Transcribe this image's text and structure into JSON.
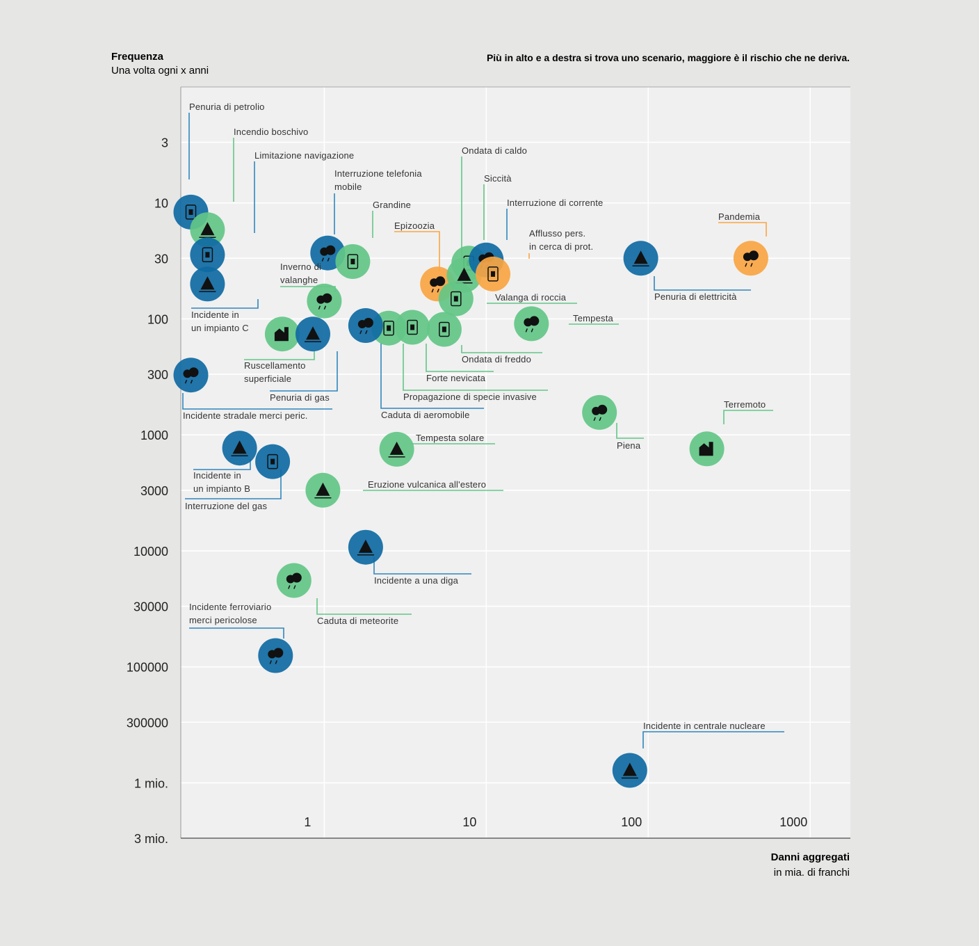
{
  "chart_data": {
    "type": "scatter",
    "title": "Più in alto e a destra si trova uno scenario, maggiore è il rischio che ne deriva.",
    "ylabel_title": "Frequenza",
    "ylabel_sub": "Una volta ogni x anni",
    "xlabel_title": "Danni aggregati",
    "xlabel_sub": "in mia. di franchi",
    "x_scale": "log",
    "y_scale": "log-inverted",
    "xlim": [
      0.13,
      1770
    ],
    "ylim": [
      1,
      3000000
    ],
    "x_ticks": [
      {
        "v": 1,
        "label": "1"
      },
      {
        "v": 10,
        "label": "10"
      },
      {
        "v": 100,
        "label": "100"
      },
      {
        "v": 1000,
        "label": "1000"
      }
    ],
    "y_ticks": [
      {
        "v": 3,
        "label": "3"
      },
      {
        "v": 10,
        "label": "10"
      },
      {
        "v": 30,
        "label": "30"
      },
      {
        "v": 100,
        "label": "100"
      },
      {
        "v": 300,
        "label": "300"
      },
      {
        "v": 1000,
        "label": "1000"
      },
      {
        "v": 3000,
        "label": "3000"
      },
      {
        "v": 10000,
        "label": "10000"
      },
      {
        "v": 30000,
        "label": "30000"
      },
      {
        "v": 100000,
        "label": "100000"
      },
      {
        "v": 300000,
        "label": "300000"
      },
      {
        "v": 1000000,
        "label": "1 mio."
      },
      {
        "v": 3000000,
        "label": "3 mio."
      }
    ],
    "colors": {
      "societal": "#0f6aa3",
      "natural": "#63c587",
      "technical": "#0f6aa3",
      "health": "#f9a543",
      "natural_line": "#63c587",
      "blue_line": "#2f86bd",
      "orange_line": "#f9a543"
    },
    "points": [
      {
        "name": "Penuria di petrolio",
        "x": 0.15,
        "y": 12,
        "cat": "blue",
        "icon": "fuel-icon"
      },
      {
        "name": "Incendio boschivo",
        "x": 0.19,
        "y": 17,
        "cat": "green",
        "icon": "forest-fire-icon"
      },
      {
        "name": "Limitazione navigazione",
        "x": 0.19,
        "y": 28,
        "cat": "blue",
        "icon": "ship-icon"
      },
      {
        "name": "Incidente in un impianto C",
        "x": 0.19,
        "y": 50,
        "cat": "blue",
        "icon": "plant-c-icon"
      },
      {
        "name": "Interruzione telefonia mobile",
        "x": 1.05,
        "y": 27,
        "cat": "blue",
        "icon": "phone-icon"
      },
      {
        "name": "Grandine",
        "x": 1.5,
        "y": 32,
        "cat": "green",
        "icon": "hail-icon"
      },
      {
        "name": "Epizoozia",
        "x": 5.0,
        "y": 50,
        "cat": "orange",
        "icon": "livestock-icon"
      },
      {
        "name": "Ondata di caldo",
        "x": 7.8,
        "y": 33,
        "cat": "green",
        "icon": "heat-icon"
      },
      {
        "name": "Siccità",
        "x": 7.3,
        "y": 42,
        "cat": "green",
        "icon": "drought-icon"
      },
      {
        "name": "Interruzione di corrente",
        "x": 10.0,
        "y": 31,
        "cat": "blue",
        "icon": "power-icon"
      },
      {
        "name": "Afflusso pers. in cerca di prot.",
        "x": 11.0,
        "y": 41,
        "cat": "orange",
        "icon": "refugees-icon"
      },
      {
        "name": "Valanga di roccia",
        "x": 6.5,
        "y": 67,
        "cat": "green",
        "icon": "rockfall-icon"
      },
      {
        "name": "Inverno di valanghe",
        "x": 1.0,
        "y": 70,
        "cat": "green",
        "icon": "avalanche-icon"
      },
      {
        "name": "Tempesta",
        "x": 19,
        "y": 110,
        "cat": "green",
        "icon": "storm-icon"
      },
      {
        "name": "Ondata di freddo",
        "x": 5.5,
        "y": 123,
        "cat": "green",
        "icon": "cold-icon"
      },
      {
        "name": "Forte nevicata",
        "x": 3.5,
        "y": 118,
        "cat": "green",
        "icon": "snow-icon"
      },
      {
        "name": "Propagazione di specie invasive",
        "x": 2.5,
        "y": 120,
        "cat": "green",
        "icon": "invasive-icon"
      },
      {
        "name": "Caduta di aeromobile",
        "x": 1.8,
        "y": 114,
        "cat": "blue",
        "icon": "plane-icon"
      },
      {
        "name": "Ruscellamento superficiale",
        "x": 0.55,
        "y": 135,
        "cat": "green",
        "icon": "runoff-icon"
      },
      {
        "name": "Penuria di gas",
        "x": 0.85,
        "y": 135,
        "cat": "blue",
        "icon": "gas-icon"
      },
      {
        "name": "Incidente stradale merci peric.",
        "x": 0.15,
        "y": 305,
        "cat": "blue",
        "icon": "truck-icon"
      },
      {
        "name": "Pandemia",
        "x": 430,
        "y": 30,
        "cat": "orange",
        "icon": "virus-icon"
      },
      {
        "name": "Penuria di elettricità",
        "x": 90,
        "y": 30,
        "cat": "blue",
        "icon": "battery-icon"
      },
      {
        "name": "Piena",
        "x": 50,
        "y": 640,
        "cat": "green",
        "icon": "flood-icon"
      },
      {
        "name": "Terremoto",
        "x": 230,
        "y": 1320,
        "cat": "green",
        "icon": "earthquake-icon"
      },
      {
        "name": "Tempesta solare",
        "x": 2.8,
        "y": 1330,
        "cat": "green",
        "icon": "sun-icon"
      },
      {
        "name": "Incidente in un impianto B",
        "x": 0.3,
        "y": 1300,
        "cat": "blue",
        "icon": "plant-b-icon"
      },
      {
        "name": "Interruzione del gas",
        "x": 0.48,
        "y": 1700,
        "cat": "blue",
        "icon": "gas-pipe-icon"
      },
      {
        "name": "Eruzione vulcanica all'estero",
        "x": 0.98,
        "y": 3000,
        "cat": "green",
        "icon": "volcano-icon"
      },
      {
        "name": "Incidente a una diga",
        "x": 1.8,
        "y": 9300,
        "cat": "blue",
        "icon": "dam-icon"
      },
      {
        "name": "Caduta di meteorite",
        "x": 0.65,
        "y": 18000,
        "cat": "green",
        "icon": "meteorite-icon"
      },
      {
        "name": "Incidente ferroviario merci pericolose",
        "x": 0.5,
        "y": 80000,
        "cat": "blue",
        "icon": "train-icon"
      },
      {
        "name": "Incidente in centrale nucleare",
        "x": 77,
        "y": 780000,
        "cat": "blue",
        "icon": "nuclear-icon"
      }
    ],
    "labels": [
      {
        "lines": [
          "Penuria di petrolio"
        ],
        "cat": "blue",
        "lx": 272,
        "ly": 158,
        "path": [
          [
            272,
            162
          ],
          [
            272,
            258
          ]
        ]
      },
      {
        "lines": [
          "Incendio boschivo"
        ],
        "cat": "green",
        "lx": 336,
        "ly": 194,
        "path": [
          [
            336,
            198
          ],
          [
            336,
            290
          ]
        ]
      },
      {
        "lines": [
          "Limitazione navigazione"
        ],
        "cat": "blue",
        "lx": 366,
        "ly": 228,
        "path": [
          [
            366,
            232
          ],
          [
            366,
            335
          ]
        ]
      },
      {
        "lines": [
          "Interruzione telefonia",
          "mobile"
        ],
        "cat": "blue",
        "lx": 481,
        "ly": 254,
        "path": [
          [
            481,
            278
          ],
          [
            481,
            337
          ]
        ]
      },
      {
        "lines": [
          "Grandine"
        ],
        "cat": "green",
        "lx": 536,
        "ly": 299,
        "path": [
          [
            536,
            303
          ],
          [
            536,
            342
          ]
        ]
      },
      {
        "lines": [
          "Epizoozia"
        ],
        "cat": "orange",
        "lx": 567,
        "ly": 329,
        "path": [
          [
            567,
            333
          ],
          [
            632,
            333
          ],
          [
            632,
            390
          ]
        ]
      },
      {
        "lines": [
          "Ondata di caldo"
        ],
        "cat": "green",
        "lx": 664,
        "ly": 221,
        "path": [
          [
            664,
            225
          ],
          [
            664,
            375
          ]
        ]
      },
      {
        "lines": [
          "Siccità"
        ],
        "cat": "green",
        "lx": 696,
        "ly": 261,
        "path": [
          [
            696,
            265
          ],
          [
            696,
            345
          ]
        ]
      },
      {
        "lines": [
          "Interruzione di corrente"
        ],
        "cat": "blue",
        "lx": 729,
        "ly": 296,
        "path": [
          [
            729,
            300
          ],
          [
            729,
            345
          ]
        ]
      },
      {
        "lines": [
          "Afflusso pers.",
          "in cerca di prot."
        ],
        "cat": "orange",
        "lx": 761,
        "ly": 340,
        "path": [
          [
            761,
            364
          ],
          [
            761,
            372
          ]
        ]
      },
      {
        "lines": [
          "Valanga di roccia"
        ],
        "cat": "green",
        "lx": 712,
        "ly": 432,
        "path": [
          [
            700,
            436
          ],
          [
            830,
            436
          ]
        ]
      },
      {
        "lines": [
          "Pandemia"
        ],
        "cat": "orange",
        "lx": 1033,
        "ly": 316,
        "path": [
          [
            1033,
            320
          ],
          [
            1102,
            320
          ],
          [
            1102,
            340
          ]
        ]
      },
      {
        "lines": [
          "Penuria di elettricità"
        ],
        "cat": "blue",
        "lx": 941,
        "ly": 431,
        "path": [
          [
            941,
            397
          ],
          [
            941,
            417
          ],
          [
            1080,
            417
          ]
        ]
      },
      {
        "lines": [
          "Inverno di",
          "valanghe"
        ],
        "cat": "green",
        "lx": 403,
        "ly": 388,
        "path": [
          [
            403,
            412
          ],
          [
            482,
            412
          ],
          [
            482,
            420
          ]
        ]
      },
      {
        "lines": [
          "Tempesta"
        ],
        "cat": "green",
        "lx": 824,
        "ly": 462,
        "path": [
          [
            818,
            466
          ],
          [
            890,
            466
          ]
        ]
      },
      {
        "lines": [
          "Incidente in",
          "un impianto C"
        ],
        "cat": "blue",
        "lx": 275,
        "ly": 457,
        "path": [
          [
            275,
            443
          ],
          [
            371,
            443
          ],
          [
            371,
            430
          ]
        ]
      },
      {
        "lines": [
          "Ondata di freddo"
        ],
        "cat": "green",
        "lx": 664,
        "ly": 521,
        "path": [
          [
            664,
            496
          ],
          [
            664,
            507
          ],
          [
            780,
            507
          ]
        ]
      },
      {
        "lines": [
          "Forte nevicata"
        ],
        "cat": "green",
        "lx": 613,
        "ly": 548,
        "path": [
          [
            613,
            494
          ],
          [
            613,
            534
          ],
          [
            710,
            534
          ]
        ]
      },
      {
        "lines": [
          "Propagazione di specie invasive"
        ],
        "cat": "green",
        "lx": 580,
        "ly": 575,
        "path": [
          [
            580,
            494
          ],
          [
            580,
            561
          ],
          [
            788,
            561
          ]
        ]
      },
      {
        "lines": [
          "Caduta di aeromobile"
        ],
        "cat": "blue",
        "lx": 548,
        "ly": 601,
        "path": [
          [
            548,
            493
          ],
          [
            548,
            587
          ],
          [
            696,
            587
          ]
        ]
      },
      {
        "lines": [
          "Ruscellamento",
          "superficiale"
        ],
        "cat": "green",
        "lx": 351,
        "ly": 530,
        "path": [
          [
            351,
            517
          ],
          [
            452,
            517
          ],
          [
            452,
            505
          ]
        ]
      },
      {
        "lines": [
          "Penuria di gas"
        ],
        "cat": "blue",
        "lx": 388,
        "ly": 576,
        "path": [
          [
            388,
            562
          ],
          [
            485,
            562
          ],
          [
            485,
            505
          ]
        ]
      },
      {
        "lines": [
          "Incidente stradale  merci peric."
        ],
        "cat": "blue",
        "lx": 263,
        "ly": 602,
        "path": [
          [
            263,
            565
          ],
          [
            263,
            588
          ],
          [
            478,
            588
          ]
        ]
      },
      {
        "lines": [
          "Piena"
        ],
        "cat": "green",
        "lx": 887,
        "ly": 645,
        "path": [
          [
            887,
            608
          ],
          [
            887,
            630
          ],
          [
            926,
            630
          ]
        ]
      },
      {
        "lines": [
          "Terremoto"
        ],
        "cat": "green",
        "lx": 1041,
        "ly": 586,
        "path": [
          [
            1041,
            610
          ],
          [
            1041,
            590
          ],
          [
            1112,
            590
          ]
        ]
      },
      {
        "lines": [
          "Tempesta solare"
        ],
        "cat": "green",
        "lx": 598,
        "ly": 634,
        "path": [
          [
            590,
            638
          ],
          [
            712,
            638
          ]
        ]
      },
      {
        "lines": [
          "Incidente in",
          "un impianto B"
        ],
        "cat": "blue",
        "lx": 278,
        "ly": 688,
        "path": [
          [
            278,
            675
          ],
          [
            360,
            675
          ],
          [
            360,
            660
          ]
        ]
      },
      {
        "lines": [
          "Interruzione del gas"
        ],
        "cat": "blue",
        "lx": 266,
        "ly": 732,
        "path": [
          [
            266,
            717
          ],
          [
            404,
            717
          ],
          [
            404,
            675
          ]
        ]
      },
      {
        "lines": [
          "Eruzione vulcanica all'estero"
        ],
        "cat": "green",
        "lx": 529,
        "ly": 701,
        "path": [
          [
            522,
            705
          ],
          [
            724,
            705
          ]
        ]
      },
      {
        "lines": [
          "Incidente a una diga"
        ],
        "cat": "blue",
        "lx": 538,
        "ly": 839,
        "path": [
          [
            538,
            801
          ],
          [
            538,
            825
          ],
          [
            678,
            825
          ]
        ]
      },
      {
        "lines": [
          "Caduta di meteorite"
        ],
        "cat": "green",
        "lx": 456,
        "ly": 897,
        "path": [
          [
            456,
            860
          ],
          [
            456,
            883
          ],
          [
            592,
            883
          ]
        ]
      },
      {
        "lines": [
          "Incidente ferroviario",
          "merci pericolose"
        ],
        "cat": "blue",
        "lx": 272,
        "ly": 877,
        "path": [
          [
            272,
            903
          ],
          [
            408,
            903
          ],
          [
            408,
            918
          ]
        ]
      },
      {
        "lines": [
          "Incidente in centrale nucleare"
        ],
        "cat": "blue",
        "lx": 925,
        "ly": 1048,
        "path": [
          [
            925,
            1076
          ],
          [
            925,
            1052
          ],
          [
            1128,
            1052
          ]
        ]
      }
    ]
  }
}
